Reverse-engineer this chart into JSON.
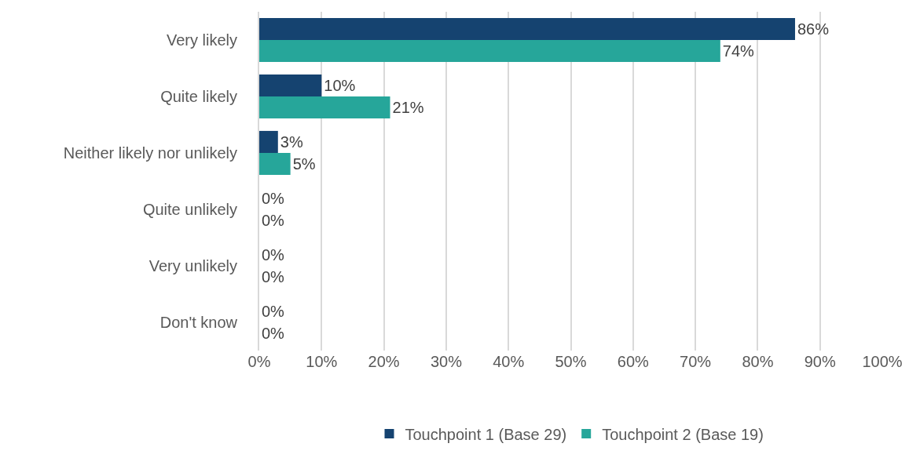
{
  "chart_data": {
    "type": "bar",
    "orientation": "horizontal",
    "categories": [
      "Very likely",
      "Quite likely",
      "Neither likely nor unlikely",
      "Quite unlikely",
      "Very unlikely",
      "Don't know"
    ],
    "series": [
      {
        "name": "Touchpoint 1 (Base 29)",
        "color": "#154370",
        "values": [
          86,
          10,
          3,
          0,
          0,
          0
        ],
        "value_labels": [
          "86%",
          "10%",
          "3%",
          "0%",
          "0%",
          "0%"
        ]
      },
      {
        "name": "Touchpoint 2 (Base 19)",
        "color": "#26a69a",
        "values": [
          74,
          21,
          5,
          0,
          0,
          0
        ],
        "value_labels": [
          "74%",
          "21%",
          "5%",
          "0%",
          "0%",
          "0%"
        ]
      }
    ],
    "xlim": [
      0,
      100
    ],
    "xticks": [
      {
        "value": 0,
        "label": "0%"
      },
      {
        "value": 10,
        "label": "10%"
      },
      {
        "value": 20,
        "label": "20%"
      },
      {
        "value": 30,
        "label": "30%"
      },
      {
        "value": 40,
        "label": "40%"
      },
      {
        "value": 50,
        "label": "50%"
      },
      {
        "value": 60,
        "label": "60%"
      },
      {
        "value": 70,
        "label": "70%"
      },
      {
        "value": 80,
        "label": "80%"
      },
      {
        "value": 90,
        "label": "90%"
      },
      {
        "value": 100,
        "label": "100%"
      }
    ],
    "grid": "x",
    "legend": "bottom"
  }
}
